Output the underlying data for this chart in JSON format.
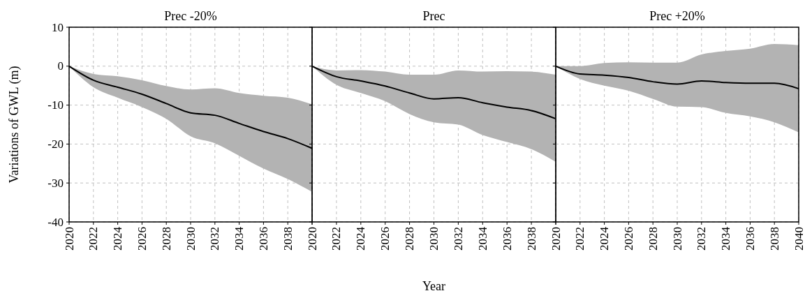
{
  "chart_data": [
    {
      "type": "line",
      "title": "Prec -20%",
      "ylabel": "Variations of GWL (m)",
      "x": [
        2020,
        2022,
        2024,
        2026,
        2028,
        2030,
        2032,
        2034,
        2036,
        2038,
        2040
      ],
      "xlim": [
        2020,
        2040
      ],
      "xticks": [
        2020,
        2022,
        2024,
        2026,
        2028,
        2030,
        2032,
        2034,
        2036,
        2038,
        {
          "value": 2040,
          "label": null
        }
      ],
      "ylim": [
        -40,
        10
      ],
      "yticks": [
        -40,
        -30,
        -20,
        -10,
        0,
        10
      ],
      "grid": true,
      "series": [
        {
          "color": "#000000",
          "values": [
            0,
            -3.6,
            -5.4,
            -7.2,
            -9.6,
            -12,
            -12.6,
            -14.7,
            -16.8,
            -18.6,
            -21.1
          ],
          "upper": [
            0,
            -2,
            -2.6,
            -3.6,
            -5.1,
            -6,
            -5.7,
            -6.9,
            -7.6,
            -8.1,
            -9.8
          ],
          "lower": [
            0,
            -5.4,
            -8.1,
            -10.5,
            -13.5,
            -18,
            -19.8,
            -23,
            -26.3,
            -29,
            -32.3
          ]
        }
      ]
    },
    {
      "type": "line",
      "title": "Prec",
      "xlabel": "Year",
      "x": [
        2020,
        2022,
        2024,
        2026,
        2028,
        2030,
        2032,
        2034,
        2036,
        2038,
        2040
      ],
      "xlim": [
        2020,
        2040
      ],
      "xticks": [
        2020,
        2022,
        2024,
        2026,
        2028,
        2030,
        2032,
        2034,
        2036,
        2038,
        {
          "value": 2040,
          "label": null
        }
      ],
      "ylim": [
        -40,
        10
      ],
      "yticks": [
        -40,
        -30,
        -20,
        -10,
        0,
        10
      ],
      "grid": true,
      "tick_labels": "x",
      "series": [
        {
          "color": "#000000",
          "values": [
            0,
            -2.7,
            -3.8,
            -5.1,
            -6.9,
            -8.4,
            -8.1,
            -9.4,
            -10.5,
            -11.4,
            -13.5
          ],
          "upper": [
            0,
            -1.1,
            -1,
            -1.4,
            -2.2,
            -2.2,
            -1.1,
            -1.4,
            -1.3,
            -1.4,
            -2.2
          ],
          "lower": [
            0,
            -4.8,
            -6.9,
            -9,
            -12.3,
            -14.4,
            -15,
            -17.7,
            -19.5,
            -21.3,
            -24.6
          ]
        }
      ]
    },
    {
      "type": "line",
      "title": "Prec +20%",
      "x": [
        2020,
        2022,
        2024,
        2026,
        2028,
        2030,
        2032,
        2034,
        2036,
        2038,
        2040
      ],
      "xlim": [
        2020,
        2040
      ],
      "xticks": [
        2020,
        2022,
        2024,
        2026,
        2028,
        2030,
        2032,
        2034,
        2036,
        2038,
        2040
      ],
      "ylim": [
        -40,
        10
      ],
      "yticks": [
        -40,
        -30,
        -20,
        -10,
        0,
        10
      ],
      "grid": true,
      "tick_labels": "x",
      "series": [
        {
          "color": "#000000",
          "values": [
            0,
            -2,
            -2.3,
            -2.9,
            -4,
            -4.6,
            -3.8,
            -4.2,
            -4.4,
            -4.4,
            -5.8
          ],
          "upper": [
            0,
            0,
            0.8,
            1,
            0.9,
            0.9,
            3,
            3.9,
            4.5,
            5.7,
            5.4
          ],
          "lower": [
            0,
            -3.3,
            -5,
            -6.3,
            -8.4,
            -10.4,
            -10.5,
            -12,
            -12.9,
            -14.4,
            -17
          ]
        }
      ]
    }
  ]
}
